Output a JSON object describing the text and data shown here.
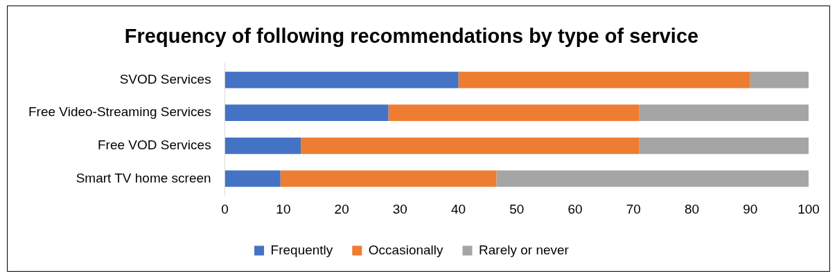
{
  "chart_data": {
    "type": "bar",
    "orientation": "horizontal",
    "stacked": true,
    "title": "Frequency of following recommendations by type of service",
    "categories": [
      "SVOD Services",
      "Free Video-Streaming Services",
      "Free VOD Services",
      "Smart TV home screen"
    ],
    "series": [
      {
        "name": "Frequently",
        "color": "#4472c4",
        "values": [
          40,
          28,
          13,
          9.5
        ]
      },
      {
        "name": "Occasionally",
        "color": "#ed7d31",
        "values": [
          50,
          43,
          58,
          37
        ]
      },
      {
        "name": "Rarely or never",
        "color": "#a5a5a5",
        "values": [
          10,
          29,
          29,
          53.5
        ]
      }
    ],
    "xlim": [
      0,
      100
    ],
    "xticks": [
      0,
      10,
      20,
      30,
      40,
      50,
      60,
      70,
      80,
      90,
      100
    ],
    "grid": false,
    "legend": "bottom"
  }
}
